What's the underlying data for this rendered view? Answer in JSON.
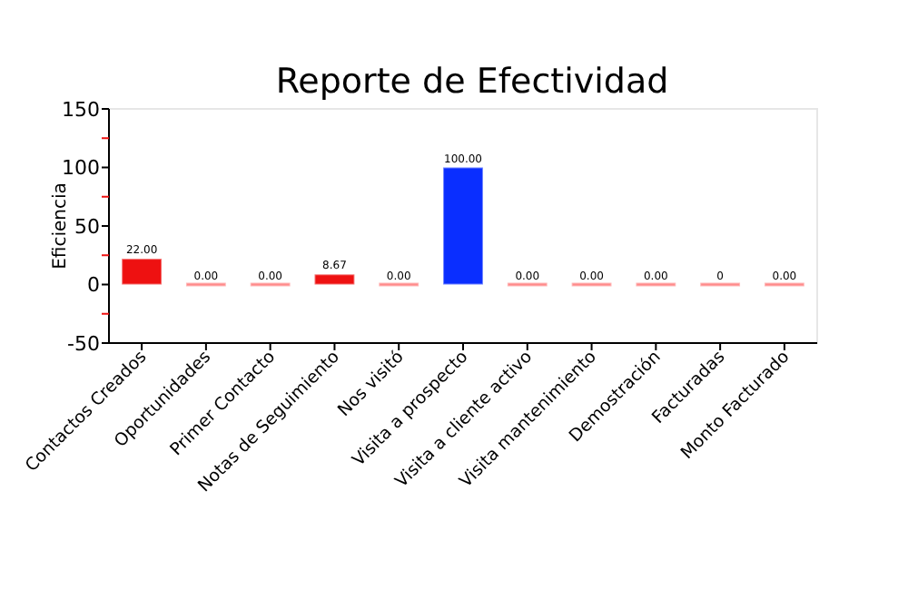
{
  "chart_data": {
    "type": "bar",
    "title": "Reporte de Efectividad",
    "ylabel": "Eficiencia",
    "categories": [
      "Contactos Creados",
      "Oportunidades",
      "Primer Contacto",
      "Notas de Seguimiento",
      "Nos visitó",
      "Visita a prospecto",
      "Visita a cliente activo",
      "Visita mantenimiento",
      "Demostración",
      "Facturadas",
      "Monto Facturado"
    ],
    "values": [
      22,
      0,
      0,
      8.67,
      0,
      100,
      0,
      0,
      0,
      0,
      0
    ],
    "colors": [
      "#ee1111",
      "#ff8a8a",
      "#ff8a8a",
      "#ee1111",
      "#ff8a8a",
      "#0a2eff",
      "#ff8a8a",
      "#ff8a8a",
      "#ff8a8a",
      "#ff8a8a",
      "#ff8a8a"
    ],
    "value_labels": [
      "22.00",
      "0.00",
      "0.00",
      "8.67",
      "0.00",
      "100.00",
      "0.00",
      "0.00",
      "0.00",
      "0",
      "0.00"
    ],
    "ylim": [
      -50,
      150
    ],
    "yticks": [
      -50,
      {
        "value": -25,
        "label": null
      },
      0,
      {
        "value": 25,
        "label": null
      },
      50,
      {
        "value": 75,
        "label": null
      },
      100,
      {
        "value": 125,
        "label": null
      },
      150
    ],
    "grid": false
  }
}
